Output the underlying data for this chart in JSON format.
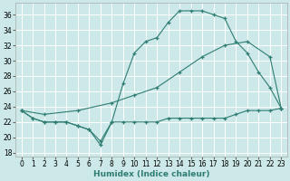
{
  "xlabel": "Humidex (Indice chaleur)",
  "ylabel": "",
  "background_color": "#cce8e8",
  "grid_color": "#ffffff",
  "line_color": "#2e7d72",
  "xlim": [
    -0.5,
    23.5
  ],
  "ylim": [
    17.5,
    37.5
  ],
  "yticks": [
    18,
    20,
    22,
    24,
    26,
    28,
    30,
    32,
    34,
    36
  ],
  "xticks": [
    0,
    1,
    2,
    3,
    4,
    5,
    6,
    7,
    8,
    9,
    10,
    11,
    12,
    13,
    14,
    15,
    16,
    17,
    18,
    19,
    20,
    21,
    22,
    23
  ],
  "line1_x": [
    0,
    1,
    2,
    3,
    4,
    5,
    6,
    7,
    8,
    9,
    10,
    11,
    12,
    13,
    14,
    15,
    16,
    17,
    18,
    19,
    20,
    21,
    22,
    23
  ],
  "line1_y": [
    23.5,
    22.5,
    22.0,
    22.0,
    22.0,
    21.5,
    21.0,
    19.5,
    22.0,
    22.0,
    22.0,
    22.0,
    22.0,
    22.5,
    22.5,
    22.5,
    22.5,
    22.5,
    22.5,
    23.0,
    23.5,
    23.5,
    23.5,
    23.8
  ],
  "line2_x": [
    0,
    1,
    2,
    3,
    4,
    5,
    6,
    7,
    8,
    9,
    10,
    11,
    12,
    13,
    14,
    15,
    16,
    17,
    18,
    19,
    20,
    21,
    22,
    23
  ],
  "line2_y": [
    23.5,
    22.5,
    22.0,
    22.0,
    22.0,
    21.5,
    21.0,
    19.0,
    22.0,
    27.0,
    31.0,
    32.5,
    33.0,
    35.0,
    36.5,
    36.5,
    36.5,
    36.0,
    35.5,
    32.5,
    31.0,
    28.5,
    26.5,
    23.8
  ],
  "line3_x": [
    0,
    2,
    5,
    8,
    10,
    12,
    14,
    16,
    18,
    20,
    22,
    23
  ],
  "line3_y": [
    23.5,
    23.0,
    23.5,
    24.5,
    25.5,
    26.5,
    28.5,
    30.5,
    32.0,
    32.5,
    30.5,
    23.8
  ]
}
